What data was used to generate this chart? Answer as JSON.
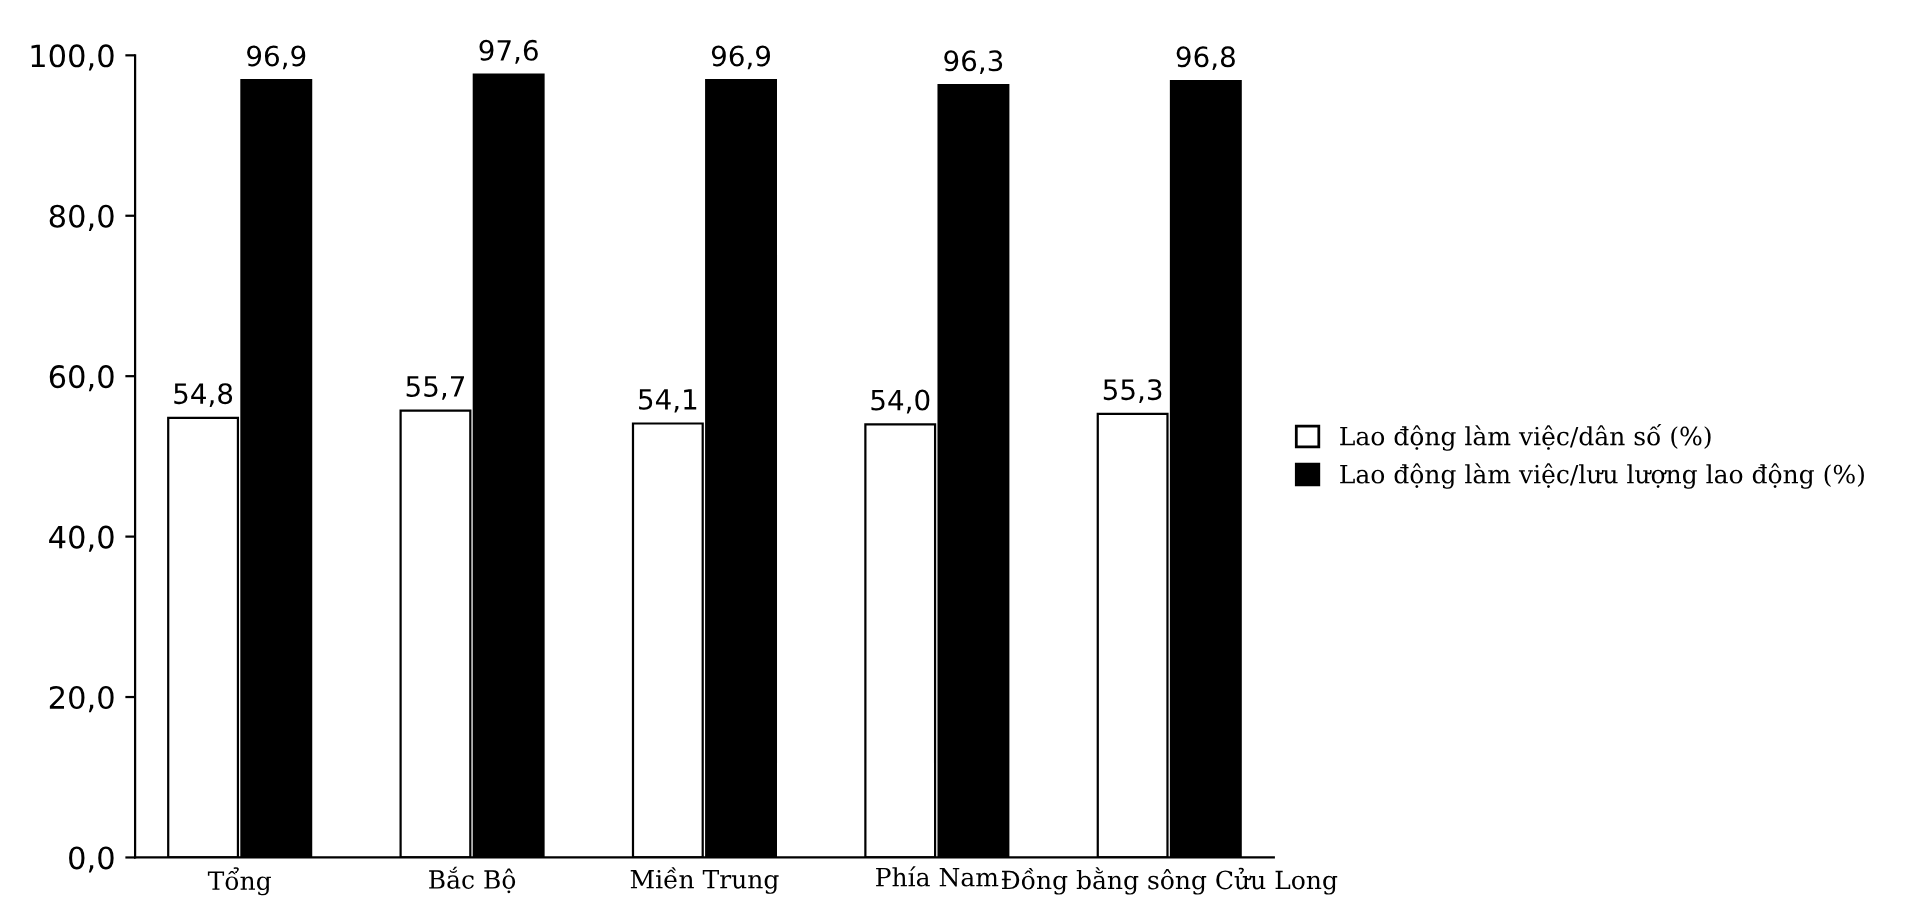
{
  "chart_data": {
    "type": "bar",
    "categories": [
      "Tổng",
      "Bắc Bộ",
      "Miền Trung",
      "Phía Nam",
      "Đồng bằng sông Cửu Long"
    ],
    "series": [
      {
        "name": "Lao động làm việc/dân số (%)",
        "color": "#ffffff",
        "values": [
          54.8,
          55.7,
          54.1,
          54.0,
          55.3
        ],
        "value_labels": [
          "54,8",
          "55,7",
          "54,1",
          "54,0",
          "55,3"
        ]
      },
      {
        "name": "Lao động làm việc/lưu lượng lao động (%)",
        "color": "#000000",
        "values": [
          96.9,
          97.6,
          96.9,
          96.3,
          96.8
        ],
        "value_labels": [
          "96,9",
          "97,6",
          "96,9",
          "96,3",
          "96,8"
        ]
      }
    ],
    "ylim": [
      0,
      100
    ],
    "yticks": [
      {
        "value": 0,
        "label": "0,0"
      },
      {
        "value": 20,
        "label": "20,0"
      },
      {
        "value": 40,
        "label": "40,0"
      },
      {
        "value": 60,
        "label": "60,0"
      },
      {
        "value": 80,
        "label": "80,0"
      },
      {
        "value": 100,
        "label": "100,0"
      }
    ],
    "grid": false,
    "legend": "right"
  }
}
